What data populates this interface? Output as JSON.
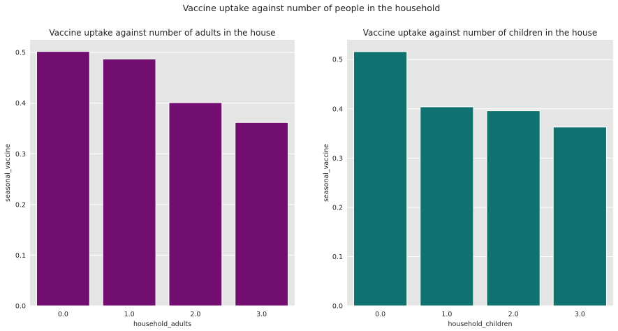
{
  "suptitle": "Vaccine uptake against number of people in the household",
  "chart_data": [
    {
      "type": "bar",
      "title": "Vaccine uptake against number of adults in the house",
      "xlabel": "household_adults",
      "ylabel": "seasonal_vaccine",
      "categories": [
        "0.0",
        "1.0",
        "2.0",
        "3.0"
      ],
      "values": [
        0.502,
        0.487,
        0.401,
        0.362
      ],
      "ylim": [
        0,
        0.525
      ],
      "yticks": [
        "0.0",
        "0.1",
        "0.2",
        "0.3",
        "0.4",
        "0.5"
      ],
      "color": "#710e70",
      "background": "#e5e5e5",
      "grid": true
    },
    {
      "type": "bar",
      "title": "Vaccine uptake against number of children in the house",
      "xlabel": "household_children",
      "ylabel": "seasonal_vaccine",
      "categories": [
        "0.0",
        "1.0",
        "2.0",
        "3.0"
      ],
      "values": [
        0.516,
        0.404,
        0.396,
        0.363
      ],
      "ylim": [
        0,
        0.54
      ],
      "yticks": [
        "0.0",
        "0.1",
        "0.2",
        "0.3",
        "0.4",
        "0.5"
      ],
      "color": "#107270",
      "background": "#e5e5e5",
      "grid": true
    }
  ]
}
